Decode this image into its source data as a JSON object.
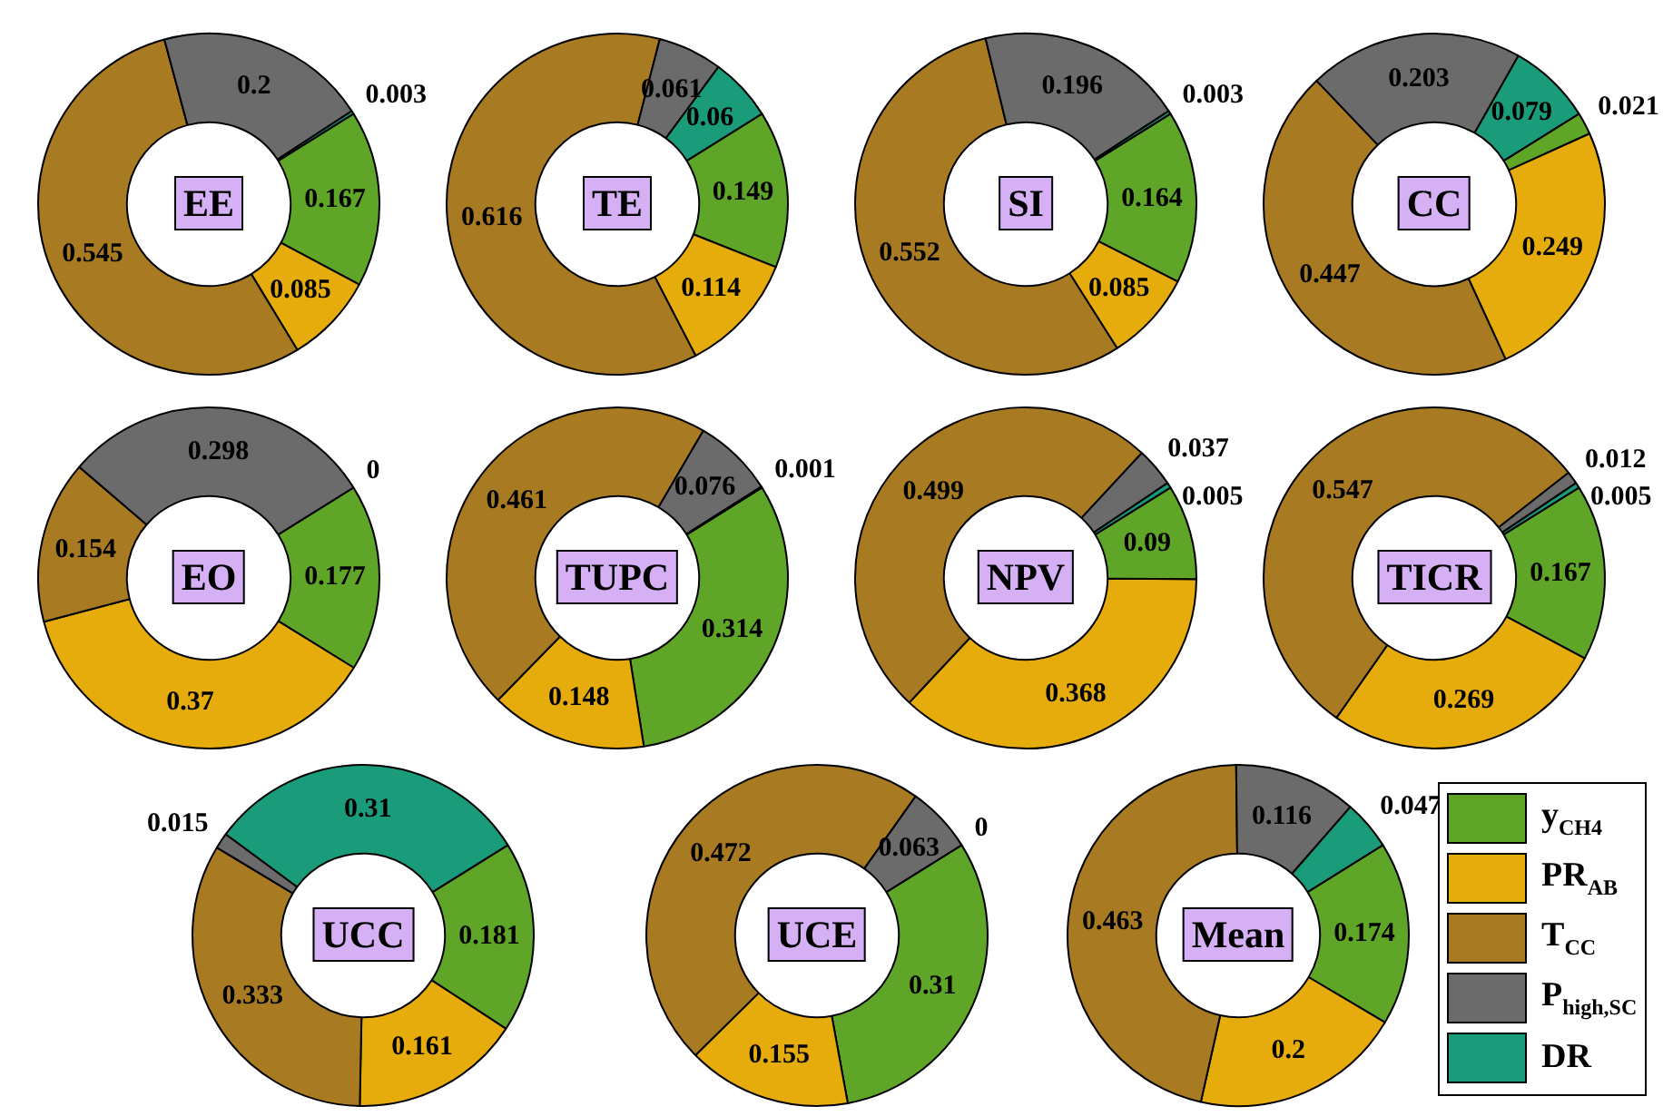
{
  "chart_data": [
    {
      "type": "donut",
      "title": "EE",
      "categories": [
        null,
        null,
        null,
        null,
        null
      ],
      "values": [
        0.167,
        0.085,
        0.545,
        0.2,
        0.003
      ],
      "colors": [
        "#5fa628",
        "#e6ac0c",
        "#a87b22",
        "#6b6b6b",
        "#1a9c7b"
      ],
      "data_labels": true
    },
    {
      "type": "donut",
      "title": "TE",
      "categories": [
        null,
        null,
        null,
        null,
        null
      ],
      "values": [
        0.149,
        0.114,
        0.616,
        0.061,
        0.06
      ],
      "colors": [
        "#5fa628",
        "#e6ac0c",
        "#a87b22",
        "#6b6b6b",
        "#1a9c7b"
      ],
      "data_labels": true
    },
    {
      "type": "donut",
      "title": "SI",
      "categories": [
        null,
        null,
        null,
        null,
        null
      ],
      "values": [
        0.164,
        0.085,
        0.552,
        0.196,
        0.003
      ],
      "colors": [
        "#5fa628",
        "#e6ac0c",
        "#a87b22",
        "#6b6b6b",
        "#1a9c7b"
      ],
      "data_labels": true
    },
    {
      "type": "donut",
      "title": "CC",
      "categories": [
        null,
        null,
        null,
        null,
        null
      ],
      "values": [
        0.021,
        0.249,
        0.447,
        0.203,
        0.079
      ],
      "colors": [
        "#5fa628",
        "#e6ac0c",
        "#a87b22",
        "#6b6b6b",
        "#1a9c7b"
      ],
      "data_labels": true
    },
    {
      "type": "donut",
      "title": "EO",
      "categories": [
        null,
        null,
        null,
        null,
        null
      ],
      "values": [
        0.177,
        0.37,
        0.154,
        0.298,
        0
      ],
      "colors": [
        "#5fa628",
        "#e6ac0c",
        "#a87b22",
        "#6b6b6b",
        "#1a9c7b"
      ],
      "value_labels": [
        "0.177",
        "0.37",
        "0.154",
        "0.298",
        "0"
      ]
    },
    {
      "type": "donut",
      "title": "TUPC",
      "categories": [
        null,
        null,
        null,
        null,
        null
      ],
      "values": [
        0.314,
        0.148,
        0.461,
        0.076,
        0.001
      ],
      "colors": [
        "#5fa628",
        "#e6ac0c",
        "#a87b22",
        "#6b6b6b",
        "#1a9c7b"
      ],
      "data_labels": true
    },
    {
      "type": "donut",
      "title": "NPV",
      "categories": [
        null,
        null,
        null,
        null,
        null
      ],
      "values": [
        0.09,
        0.368,
        0.499,
        0.037,
        0.005
      ],
      "colors": [
        "#5fa628",
        "#e6ac0c",
        "#a87b22",
        "#6b6b6b",
        "#1a9c7b"
      ],
      "data_labels": true
    },
    {
      "type": "donut",
      "title": "TICR",
      "categories": [
        null,
        null,
        null,
        null,
        null
      ],
      "values": [
        0.167,
        0.269,
        0.547,
        0.012,
        0.005
      ],
      "colors": [
        "#5fa628",
        "#e6ac0c",
        "#a87b22",
        "#6b6b6b",
        "#1a9c7b"
      ],
      "data_labels": true
    },
    {
      "type": "donut",
      "title": "UCC",
      "categories": [
        null,
        null,
        null,
        null,
        null
      ],
      "values": [
        0.181,
        0.161,
        0.333,
        0.015,
        0.31
      ],
      "colors": [
        "#5fa628",
        "#e6ac0c",
        "#a87b22",
        "#6b6b6b",
        "#1a9c7b"
      ],
      "data_labels": true
    },
    {
      "type": "donut",
      "title": "UCE",
      "categories": [
        null,
        null,
        null,
        null,
        null
      ],
      "values": [
        0.31,
        0.155,
        0.472,
        0.063,
        0
      ],
      "colors": [
        "#5fa628",
        "#e6ac0c",
        "#a87b22",
        "#6b6b6b",
        "#1a9c7b"
      ],
      "value_labels": [
        "0.31",
        "0.155",
        "0.472",
        "0.063",
        "0"
      ]
    },
    {
      "type": "donut",
      "title": "Mean",
      "categories": [
        "y$_{CH4}$",
        "PR$_{AB}$",
        "T$_{CC}$",
        "P$_{high,SC}$",
        "DR"
      ],
      "values": [
        0.174,
        0.2,
        0.463,
        0.116,
        0.047
      ],
      "colors": [
        "#5fa628",
        "#e6ac0c",
        "#a87b22",
        "#6b6b6b",
        "#1a9c7b"
      ],
      "data_labels": true,
      "legend": "right"
    }
  ]
}
